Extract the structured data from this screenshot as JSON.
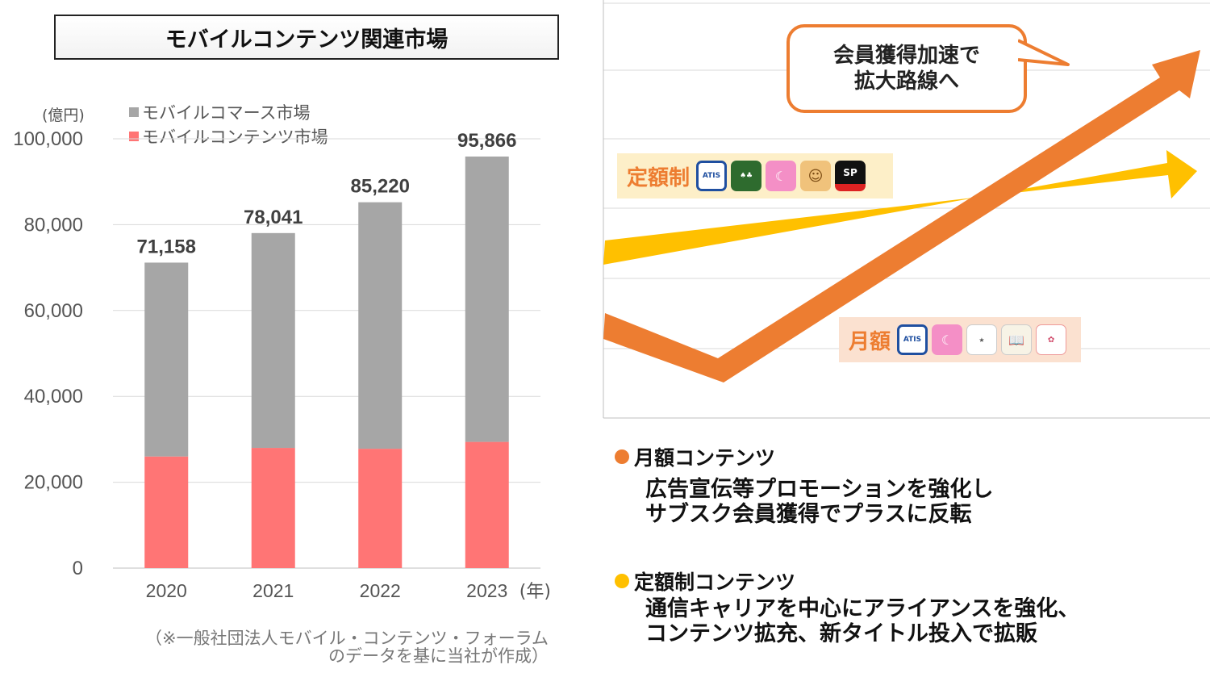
{
  "header": {
    "title": "モバイルコンテンツ関連市場"
  },
  "chart_data": {
    "type": "bar",
    "stacked": true,
    "unit_label": "(億円)",
    "categories": [
      "2020",
      "2021",
      "2022",
      "2023"
    ],
    "x_suffix": "(年)",
    "series": [
      {
        "name": "モバイルコンテンツ市場",
        "values": [
          26000,
          28000,
          27800,
          29400
        ],
        "color": "#ff7575"
      },
      {
        "name": "モバイルコマース市場",
        "values": [
          45158,
          50041,
          57420,
          66466
        ],
        "color": "#a6a6a6"
      }
    ],
    "totals": [
      71158,
      78041,
      85220,
      95866
    ],
    "total_labels": [
      "71,158",
      "78,041",
      "85,220",
      "95,866"
    ],
    "ylim": [
      0,
      100000
    ],
    "yticks": [
      0,
      20000,
      40000,
      60000,
      80000,
      100000
    ],
    "ytick_labels": [
      "0",
      "20,000",
      "40,000",
      "60,000",
      "80,000",
      "100,000"
    ],
    "grid": true,
    "legend_position": "top-left",
    "legend": [
      {
        "label": "モバイルコマース市場",
        "color": "#a6a6a6"
      },
      {
        "label": "モバイルコンテンツ市場",
        "color": "#ff7575"
      }
    ]
  },
  "source_note": {
    "line1": "（※一般社団法人モバイル・コンテンツ・フォーラム",
    "line2": "のデータを基に当社が作成）"
  },
  "trend_panel": {
    "callout_line1": "会員獲得加速で",
    "callout_line2": "拡大路線へ",
    "orange_color": "#ed7d31",
    "yellow_color": "#ffc000",
    "subscription_tag": {
      "label": "定額制",
      "icons": [
        "atis-app-icon",
        "solitaire-app-icon",
        "pink-moon-app-icon",
        "blonde-woman-app-icon",
        "sp-app-icon"
      ]
    },
    "monthly_tag": {
      "label": "月額",
      "icons": [
        "atis-app-icon",
        "pink-moon-app-icon",
        "lucky-station-app-icon",
        "book-app-icon",
        "nadeshiko-shoten-app-icon"
      ]
    }
  },
  "bullets": [
    {
      "title": "月額コンテンツ",
      "color": "#ed7d31",
      "desc_line1": "広告宣伝等プロモーションを強化し",
      "desc_line2": "サブスク会員獲得でプラスに反転"
    },
    {
      "title": "定額制コンテンツ",
      "color": "#ffc000",
      "desc_line1": "通信キャリアを中心にアライアンスを強化、",
      "desc_line2": "コンテンツ拡充、新タイトル投入で拡販"
    }
  ]
}
